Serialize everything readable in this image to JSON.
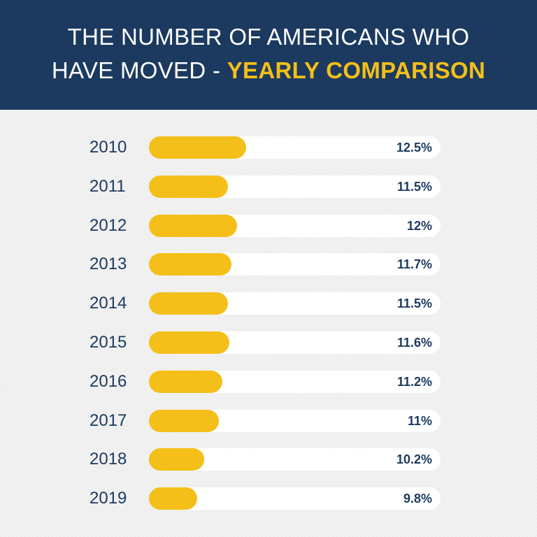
{
  "title": {
    "line1": "THE NUMBER OF AMERICANS WHO",
    "line2_plain": "HAVE MOVED - ",
    "line2_highlight": "YEARLY COMPARISON"
  },
  "colors": {
    "header": "#1c3a5f",
    "bar": "#f4bf19",
    "track": "#ffffff",
    "text": "#1c3a5f"
  },
  "chart_data": {
    "type": "bar",
    "orientation": "horizontal",
    "title": "THE NUMBER OF AMERICANS WHO HAVE MOVED - YEARLY COMPARISON",
    "categories": [
      "2010",
      "2011",
      "2012",
      "2013",
      "2014",
      "2015",
      "2016",
      "2017",
      "2018",
      "2019"
    ],
    "values": [
      12.5,
      11.5,
      12,
      11.7,
      11.5,
      11.6,
      11.2,
      11,
      10.2,
      9.8
    ],
    "labels": [
      "12.5%",
      "11.5%",
      "12%",
      "11.7%",
      "11.5%",
      "11.6%",
      "11.2%",
      "11%",
      "10.2%",
      "9.8%"
    ],
    "unit": "%",
    "xlim": [
      7.15,
      23.25
    ],
    "grid": false
  }
}
